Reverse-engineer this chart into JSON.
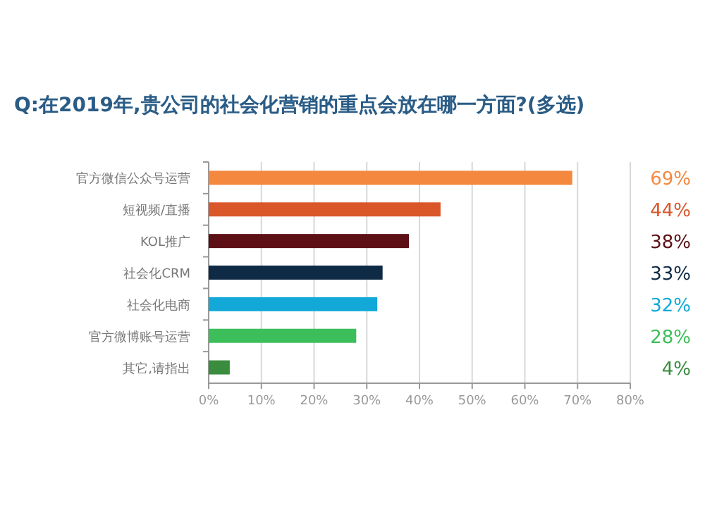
{
  "chart_data": {
    "type": "bar",
    "orientation": "horizontal",
    "title": "Q:在2019年,贵公司的社会化营销的重点会放在哪一方面?(多选)",
    "categories": [
      "官方微信公众号运营",
      "短视频/直播",
      "KOL推广",
      "社会化CRM",
      "社会化电商",
      "官方微博账号运营",
      "其它,请指出"
    ],
    "values": [
      69,
      44,
      38,
      33,
      32,
      28,
      4
    ],
    "colors": [
      "#f5883f",
      "#d9572b",
      "#5c0f14",
      "#0e2a45",
      "#12a9d9",
      "#3cbf5a",
      "#3a8c3e"
    ],
    "value_labels": [
      "69%",
      "44%",
      "38%",
      "33%",
      "32%",
      "28%",
      "4%"
    ],
    "xlim": [
      0,
      80
    ],
    "xticks": [
      {
        "value": 0,
        "label": "0%"
      },
      {
        "value": 10,
        "label": "10%"
      },
      {
        "value": 20,
        "label": "20%"
      },
      {
        "value": 30,
        "label": "30%"
      },
      {
        "value": 40,
        "label": "40%"
      },
      {
        "value": 50,
        "label": "50%"
      },
      {
        "value": 60,
        "label": "60%"
      },
      {
        "value": 70,
        "label": "70%"
      },
      {
        "value": 80,
        "label": "80%"
      }
    ],
    "grid": "x"
  }
}
